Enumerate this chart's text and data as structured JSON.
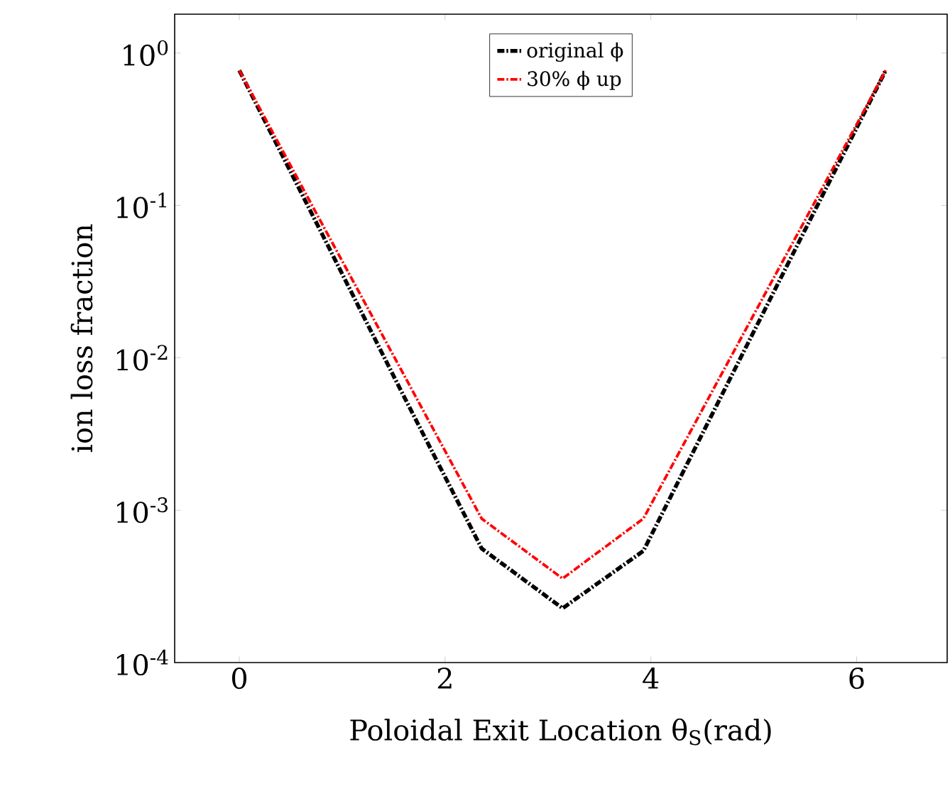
{
  "chart_data": {
    "type": "line",
    "xlabel": "Poloidal Exit Location θ$_{S}$(rad)",
    "ylabel": "ion loss fraction",
    "x": [
      0,
      0.785,
      1.571,
      2.356,
      3.142,
      3.927,
      4.712,
      5.498,
      6.283
    ],
    "series": [
      {
        "name": "original ϕ",
        "color": "#000000",
        "line_style": "dashdot",
        "values": [
          0.77,
          0.069,
          0.0061,
          0.00056,
          0.000227,
          0.00054,
          0.0061,
          0.069,
          0.77
        ]
      },
      {
        "name": "30% ϕ up",
        "color": "#ff0000",
        "line_style": "dashdot",
        "values": [
          0.77,
          0.08,
          0.0084,
          0.00088,
          0.000356,
          0.00088,
          0.0084,
          0.08,
          0.77
        ]
      }
    ],
    "log": "y",
    "xlim": [
      -0.628,
      6.88
    ],
    "ylim": [
      0.0001,
      1.8
    ],
    "xticks": [
      0,
      2,
      4,
      6
    ],
    "yticks": [
      {
        "value": 1,
        "label": "10$^{0}$"
      },
      {
        "value": 0.1,
        "label": "10$^{-1}$"
      },
      {
        "value": 0.01,
        "label": "10$^{-2}$"
      },
      {
        "value": 0.001,
        "label": "10$^{-3}$"
      },
      {
        "value": 0.0001,
        "label": "10$^{-4}$"
      }
    ],
    "legend": "top",
    "grid": false,
    "marker": "none"
  }
}
